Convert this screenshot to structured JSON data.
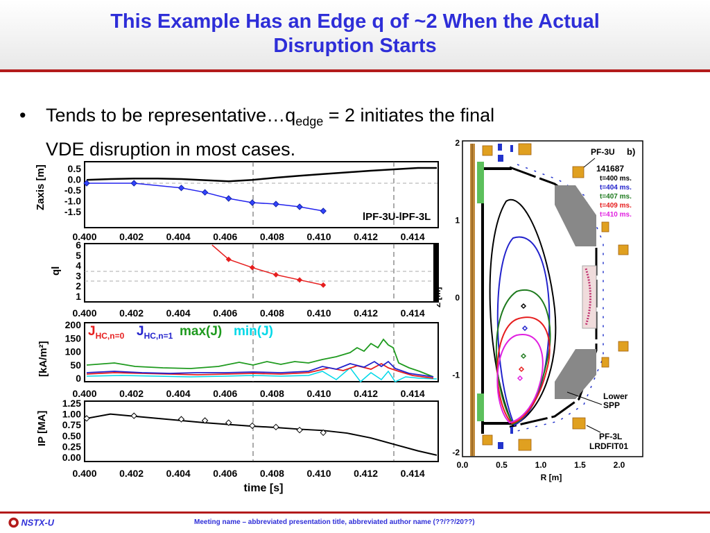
{
  "slide": {
    "title_line1": "This Example Has an Edge q of ~2 When the Actual",
    "title_line2": "Disruption Starts",
    "bullet_part1": "Tends to be representative…q",
    "bullet_sub": "edge",
    "bullet_part2": " = 2 initiates the final",
    "bullet_line2": "VDE disruption in most cases."
  },
  "footer": {
    "logo_text": "NSTX-U",
    "meeting_text": "Meeting name – abbreviated presentation title,  abbreviated author name  (??/??/20??)"
  },
  "left_panels": {
    "x_ticks": [
      "0.400",
      "0.402",
      "0.404",
      "0.406",
      "0.408",
      "0.410",
      "0.412",
      "0.414"
    ],
    "x_label": "time [s]",
    "panel1": {
      "ylabel": "Zaxis [m]",
      "yticks": [
        "0.5",
        "0.0",
        "-0.5",
        "-1.0",
        "-1.5"
      ],
      "annotation": "lPF-3U-lPF-3L",
      "series_axis": {
        "x": [
          0.4,
          0.401,
          0.402,
          0.403,
          0.404,
          0.405,
          0.406,
          0.407,
          0.408,
          0.409,
          0.41,
          0.411,
          0.412,
          0.413,
          0.414,
          0.4148
        ],
        "y": [
          0.12,
          0.15,
          0.17,
          0.17,
          0.15,
          0.11,
          0.07,
          0.12,
          0.2,
          0.27,
          0.33,
          0.39,
          0.45,
          0.5,
          0.55,
          0.55
        ]
      },
      "series_markers": {
        "x": [
          0.4,
          0.402,
          0.404,
          0.405,
          0.406,
          0.407,
          0.408,
          0.409,
          0.41
        ],
        "y": [
          0.0,
          0.0,
          -0.17,
          -0.33,
          -0.55,
          -0.7,
          -0.75,
          -0.85,
          -1.0
        ]
      }
    },
    "panel2": {
      "ylabel": "ql",
      "yticks": [
        "6",
        "5",
        "4",
        "3",
        "2",
        "1"
      ],
      "series": {
        "x": [
          0.4053,
          0.406,
          0.407,
          0.408,
          0.409,
          0.41
        ],
        "y": [
          6,
          4.6,
          3.8,
          3.1,
          2.6,
          2.1
        ]
      }
    },
    "panel3": {
      "ylabel": "[kA/m²]",
      "yticks": [
        "200",
        "150",
        "100",
        "50",
        "0"
      ],
      "legend": [
        "JHC,n=0",
        "JHC,n=1",
        "max(J)",
        "min(J)"
      ],
      "legend_colors": [
        "#e61e1e",
        "#2222cc",
        "#1e9a1e",
        "#00d8e8"
      ]
    },
    "panel4": {
      "ylabel": "IP [MA]",
      "yticks": [
        "1.25",
        "1.00",
        "0.75",
        "0.50",
        "0.25",
        "0.00"
      ],
      "series": {
        "x": [
          0.4,
          0.401,
          0.402,
          0.403,
          0.404,
          0.405,
          0.406,
          0.407,
          0.408,
          0.409,
          0.41,
          0.411,
          0.412,
          0.413,
          0.414,
          0.4148
        ],
        "y": [
          0.9,
          1.0,
          0.95,
          0.9,
          0.85,
          0.8,
          0.76,
          0.72,
          0.69,
          0.65,
          0.62,
          0.56,
          0.45,
          0.3,
          0.15,
          0.05
        ]
      },
      "markers": {
        "x": [
          0.4,
          0.402,
          0.404,
          0.405,
          0.406,
          0.407,
          0.408,
          0.409,
          0.41
        ],
        "y": [
          0.9,
          0.96,
          0.88,
          0.85,
          0.8,
          0.73,
          0.7,
          0.63,
          0.57
        ]
      }
    }
  },
  "right_plot": {
    "y_ticks": [
      "2",
      "1",
      "0",
      "-1",
      "-2"
    ],
    "x_ticks": [
      "0.0",
      "0.5",
      "1.0",
      "1.5",
      "2.0"
    ],
    "y_label": "Z [m]",
    "x_label": "R [m]",
    "labels": {
      "pf3u": "PF-3U",
      "b": "b)",
      "shot": "141687",
      "t1": "t=400 ms.",
      "t2": "t=404 ms.",
      "t3": "t=407 ms.",
      "t4": "t=409 ms.",
      "t5": "t=410 ms.",
      "lower_spp_1": "Lower",
      "lower_spp_2": "SPP",
      "pf3l": "PF-3L",
      "lrdfit": "LRDFIT01"
    },
    "time_colors": [
      "#000000",
      "#2222cc",
      "#1e7a1e",
      "#e61e1e",
      "#e020e0"
    ]
  }
}
